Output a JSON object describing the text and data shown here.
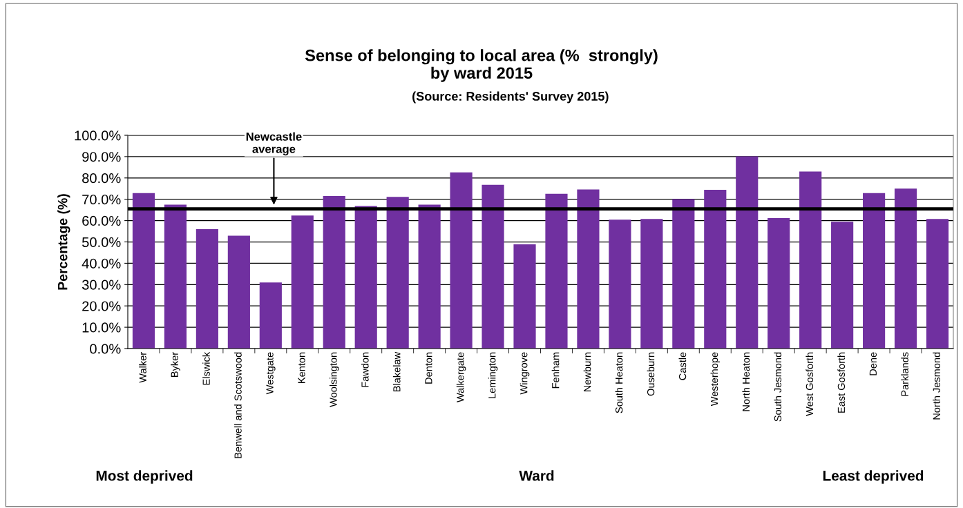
{
  "chart_data": {
    "type": "bar",
    "title": "Sense of belonging to local area (%  strongly)\nby ward 2015",
    "subtitle": "(Source: Residents' Survey 2015)",
    "xlabel": "Ward",
    "ylabel": "Percentage (%)",
    "categories": [
      "Walker",
      "Byker",
      "Elswick",
      "Benwell and Scotswood",
      "Westgate",
      "Kenton",
      "Woolsington",
      "Fawdon",
      "Blakelaw",
      "Denton",
      "Walkergate",
      "Lemington",
      "Wingrove",
      "Fenham",
      "Newburn",
      "South Heaton",
      "Ouseburn",
      "Castle",
      "Westerhope",
      "North Heaton",
      "South Jesmond",
      "West Gosforth",
      "East Gosforth",
      "Dene",
      "Parklands",
      "North Jesmond"
    ],
    "values": [
      72.9,
      67.5,
      56.0,
      52.9,
      31.0,
      62.4,
      71.5,
      66.8,
      71.1,
      67.5,
      82.6,
      76.8,
      48.9,
      72.6,
      74.6,
      60.4,
      60.8,
      70.1,
      74.4,
      90.1,
      61.2,
      83.0,
      59.5,
      72.9,
      75.0,
      60.8
    ],
    "color": "#7030a0",
    "ylim": [
      0,
      100
    ],
    "yticks": [
      {
        "value": 0,
        "label": "0.0%"
      },
      {
        "value": 10,
        "label": "10.0%"
      },
      {
        "value": 20,
        "label": "20.0%"
      },
      {
        "value": 30,
        "label": "30.0%"
      },
      {
        "value": 40,
        "label": "40.0%"
      },
      {
        "value": 50,
        "label": "50.0%"
      },
      {
        "value": 60,
        "label": "60.0%"
      },
      {
        "value": 70,
        "label": "70.0%"
      },
      {
        "value": 80,
        "label": "80.0%"
      },
      {
        "value": 90,
        "label": "90.0%"
      },
      {
        "value": 100,
        "label": "100.0%"
      }
    ],
    "grid": "y",
    "ref_lines": [
      {
        "axis": "y",
        "value": 65.5,
        "label": "Newcastle\naverage",
        "color": "#000000",
        "line_style": "solid"
      }
    ],
    "annotations": [
      "Most deprived",
      "Least deprived"
    ]
  }
}
